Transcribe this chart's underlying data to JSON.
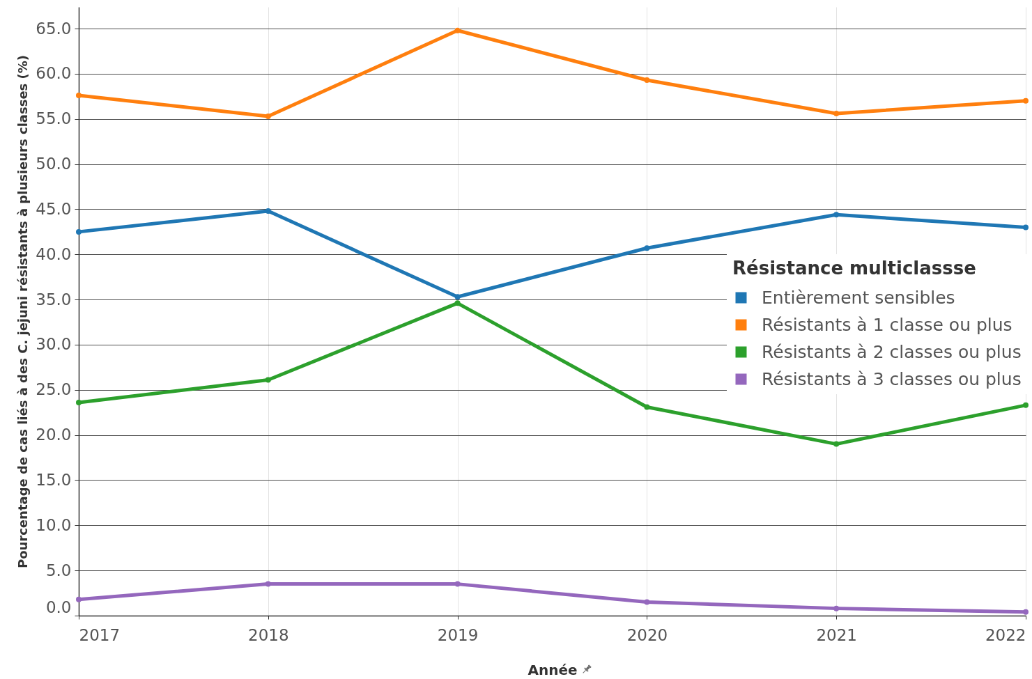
{
  "chart_data": {
    "type": "line",
    "xlabel": "Année",
    "ylabel": "Pourcentage de cas liés à des C. jejuni résistants à plusieurs classes (%)",
    "legend_title": "Résistance multiclassse",
    "x": [
      2017,
      2018,
      2019,
      2020,
      2021,
      2022
    ],
    "series": [
      {
        "name": "Entièrement sensibles",
        "color": "#1f77b4",
        "values": [
          42.5,
          44.8,
          35.3,
          40.7,
          44.4,
          43.0
        ]
      },
      {
        "name": "Résistants à 1 classe ou plus",
        "color": "#ff7f0e",
        "values": [
          57.6,
          55.3,
          64.8,
          59.3,
          55.6,
          57.0
        ]
      },
      {
        "name": "Résistants à 2 classes ou plus",
        "color": "#2ca02c",
        "values": [
          23.6,
          26.1,
          34.6,
          23.1,
          19.0,
          23.3
        ]
      },
      {
        "name": "Résistants à 3 classes ou plus",
        "color": "#9467bd",
        "values": [
          1.8,
          3.5,
          3.5,
          1.5,
          0.8,
          0.4
        ]
      }
    ],
    "xlim": [
      2017,
      2022
    ],
    "xticks": [
      2017,
      2018,
      2019,
      2020,
      2021,
      2022
    ],
    "ylim": [
      0,
      67.4
    ],
    "yticks": [
      {
        "value": 0,
        "label": "0.0"
      },
      {
        "value": 5,
        "label": "5.0"
      },
      {
        "value": 10,
        "label": "10.0"
      },
      {
        "value": 15,
        "label": "15.0"
      },
      {
        "value": 20,
        "label": "20.0"
      },
      {
        "value": 25,
        "label": "25.0"
      },
      {
        "value": 30,
        "label": "30.0"
      },
      {
        "value": 35,
        "label": "35.0"
      },
      {
        "value": 40,
        "label": "40.0"
      },
      {
        "value": 45,
        "label": "45.0"
      },
      {
        "value": 50,
        "label": "50.0"
      },
      {
        "value": 55,
        "label": "55.0"
      },
      {
        "value": 60,
        "label": "60.0"
      },
      {
        "value": 65,
        "label": "65.0"
      }
    ],
    "grid": true,
    "legend": "right",
    "marker": "circle"
  }
}
